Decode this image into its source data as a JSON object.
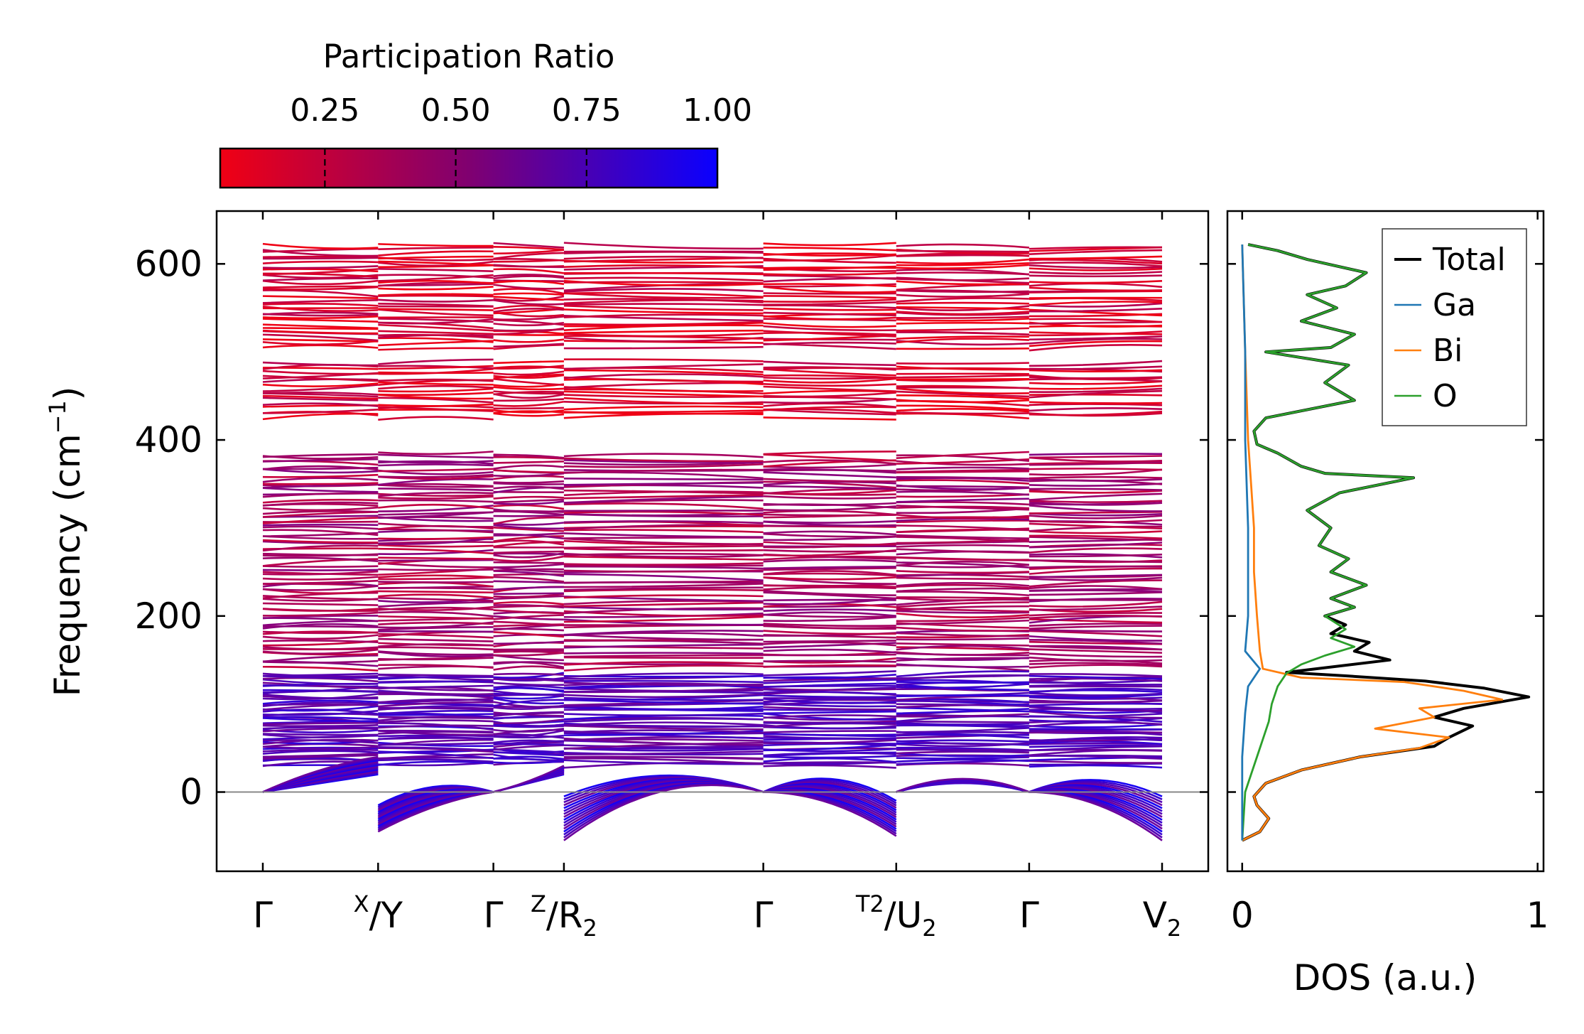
{
  "colorbar": {
    "title": "Participation Ratio",
    "ticks": [
      0.25,
      0.5,
      0.75,
      1.0
    ],
    "tick_labels": [
      "0.25",
      "0.50",
      "0.75",
      "1.00"
    ],
    "range": [
      0.05,
      1.0
    ],
    "color_low": "#ff0000",
    "color_high": "#0000ff"
  },
  "chart_data": [
    {
      "type": "line",
      "name": "phonon-band-structure",
      "ylabel": "Frequency (cm−1)",
      "ylim": [
        -90,
        660
      ],
      "yticks": [
        0,
        200,
        400,
        600
      ],
      "ytick_labels": [
        "0",
        "200",
        "400",
        "600"
      ],
      "kpath": [
        "Γ",
        "X|Y",
        "Γ",
        "Z|R2",
        "Γ",
        "T2|U2",
        "Γ",
        "V2"
      ],
      "kpath_labels": [
        {
          "main": "Γ"
        },
        {
          "sup": "X",
          "main": "/Y"
        },
        {
          "main": "Γ"
        },
        {
          "sup": "Z",
          "main": "/R",
          "sub": "2"
        },
        {
          "main": "Γ"
        },
        {
          "sup": "T2",
          "main": "/U",
          "sub": "2"
        },
        {
          "main": "Γ"
        },
        {
          "main": "V",
          "sub": "2"
        }
      ],
      "segment_lengths": [
        0.85,
        0.85,
        0.52,
        1.47,
        0.98,
        0.98,
        0.98
      ],
      "bands": {
        "high_group": {
          "range": [
            425,
            622
          ],
          "gaps": [
            [
              490,
              505
            ]
          ],
          "participation_ratio": 0.15
        },
        "mid_group": {
          "range": [
            140,
            385
          ],
          "participation_ratio": 0.35
        },
        "low_group": {
          "range": [
            30,
            135
          ],
          "participation_ratio": 0.7
        },
        "acoustic": {
          "range": [
            -55,
            40
          ],
          "min_frequency": -55,
          "participation_ratio": 0.9
        }
      }
    },
    {
      "type": "line",
      "name": "phonon-dos",
      "xlabel": "DOS (a.u.)",
      "xlim": [
        -0.05,
        1.02
      ],
      "xticks": [
        0,
        1
      ],
      "xtick_labels": [
        "0",
        "1"
      ],
      "ylim": [
        -90,
        660
      ],
      "series": [
        {
          "name": "Total",
          "color": "#000000",
          "points": [
            [
              0.0,
              -55
            ],
            [
              0.06,
              -45
            ],
            [
              0.09,
              -30
            ],
            [
              0.05,
              -15
            ],
            [
              0.04,
              -5
            ],
            [
              0.08,
              10
            ],
            [
              0.2,
              25
            ],
            [
              0.4,
              40
            ],
            [
              0.65,
              52
            ],
            [
              0.7,
              62
            ],
            [
              0.78,
              75
            ],
            [
              0.65,
              85
            ],
            [
              0.75,
              95
            ],
            [
              0.97,
              108
            ],
            [
              0.82,
              118
            ],
            [
              0.62,
              126
            ],
            [
              0.35,
              132
            ],
            [
              0.15,
              136
            ],
            [
              0.25,
              140
            ],
            [
              0.5,
              150
            ],
            [
              0.38,
              160
            ],
            [
              0.43,
              170
            ],
            [
              0.3,
              180
            ],
            [
              0.35,
              190
            ],
            [
              0.28,
              200
            ],
            [
              0.38,
              210
            ],
            [
              0.3,
              220
            ],
            [
              0.42,
              235
            ],
            [
              0.3,
              250
            ],
            [
              0.36,
              265
            ],
            [
              0.26,
              280
            ],
            [
              0.3,
              300
            ],
            [
              0.22,
              320
            ],
            [
              0.33,
              340
            ],
            [
              0.58,
              357
            ],
            [
              0.28,
              362
            ],
            [
              0.2,
              370
            ],
            [
              0.12,
              385
            ],
            [
              0.05,
              395
            ],
            [
              0.04,
              410
            ],
            [
              0.08,
              425
            ],
            [
              0.38,
              445
            ],
            [
              0.28,
              465
            ],
            [
              0.36,
              485
            ],
            [
              0.08,
              500
            ],
            [
              0.3,
              505
            ],
            [
              0.38,
              520
            ],
            [
              0.2,
              535
            ],
            [
              0.32,
              550
            ],
            [
              0.22,
              565
            ],
            [
              0.35,
              575
            ],
            [
              0.42,
              590
            ],
            [
              0.22,
              605
            ],
            [
              0.12,
              615
            ],
            [
              0.02,
              622
            ]
          ]
        },
        {
          "name": "Ga",
          "color": "#1f77b4",
          "points": [
            [
              0.0,
              -55
            ],
            [
              0.0,
              40
            ],
            [
              0.01,
              90
            ],
            [
              0.02,
              120
            ],
            [
              0.06,
              140
            ],
            [
              0.01,
              160
            ],
            [
              0.02,
              200
            ],
            [
              0.02,
              300
            ],
            [
              0.01,
              400
            ],
            [
              0.01,
              500
            ],
            [
              0.0,
              622
            ]
          ]
        },
        {
          "name": "Bi",
          "color": "#ff7f0e",
          "points": [
            [
              0.0,
              -55
            ],
            [
              0.06,
              -45
            ],
            [
              0.09,
              -30
            ],
            [
              0.05,
              -15
            ],
            [
              0.04,
              -5
            ],
            [
              0.08,
              10
            ],
            [
              0.2,
              25
            ],
            [
              0.4,
              40
            ],
            [
              0.6,
              50
            ],
            [
              0.7,
              62
            ],
            [
              0.45,
              72
            ],
            [
              0.65,
              85
            ],
            [
              0.6,
              95
            ],
            [
              0.88,
              105
            ],
            [
              0.75,
              115
            ],
            [
              0.55,
              125
            ],
            [
              0.2,
              130
            ],
            [
              0.07,
              140
            ],
            [
              0.06,
              160
            ],
            [
              0.05,
              200
            ],
            [
              0.04,
              250
            ],
            [
              0.04,
              300
            ],
            [
              0.03,
              350
            ],
            [
              0.02,
              400
            ],
            [
              0.01,
              500
            ],
            [
              0.0,
              622
            ]
          ]
        },
        {
          "name": "O",
          "color": "#2ca02c",
          "points": [
            [
              0.0,
              -55
            ],
            [
              0.01,
              0
            ],
            [
              0.03,
              20
            ],
            [
              0.05,
              40
            ],
            [
              0.07,
              60
            ],
            [
              0.09,
              80
            ],
            [
              0.1,
              100
            ],
            [
              0.12,
              120
            ],
            [
              0.15,
              135
            ],
            [
              0.2,
              145
            ],
            [
              0.28,
              155
            ],
            [
              0.38,
              165
            ],
            [
              0.3,
              175
            ],
            [
              0.35,
              185
            ],
            [
              0.28,
              200
            ],
            [
              0.38,
              210
            ],
            [
              0.3,
              220
            ],
            [
              0.42,
              235
            ],
            [
              0.3,
              250
            ],
            [
              0.36,
              265
            ],
            [
              0.26,
              280
            ],
            [
              0.3,
              300
            ],
            [
              0.22,
              320
            ],
            [
              0.33,
              340
            ],
            [
              0.58,
              357
            ],
            [
              0.28,
              362
            ],
            [
              0.2,
              370
            ],
            [
              0.12,
              385
            ],
            [
              0.05,
              395
            ],
            [
              0.04,
              410
            ],
            [
              0.08,
              425
            ],
            [
              0.38,
              445
            ],
            [
              0.28,
              465
            ],
            [
              0.36,
              485
            ],
            [
              0.08,
              500
            ],
            [
              0.3,
              505
            ],
            [
              0.38,
              520
            ],
            [
              0.2,
              535
            ],
            [
              0.32,
              550
            ],
            [
              0.22,
              565
            ],
            [
              0.35,
              575
            ],
            [
              0.42,
              590
            ],
            [
              0.22,
              605
            ],
            [
              0.12,
              615
            ],
            [
              0.02,
              622
            ]
          ]
        }
      ]
    }
  ]
}
